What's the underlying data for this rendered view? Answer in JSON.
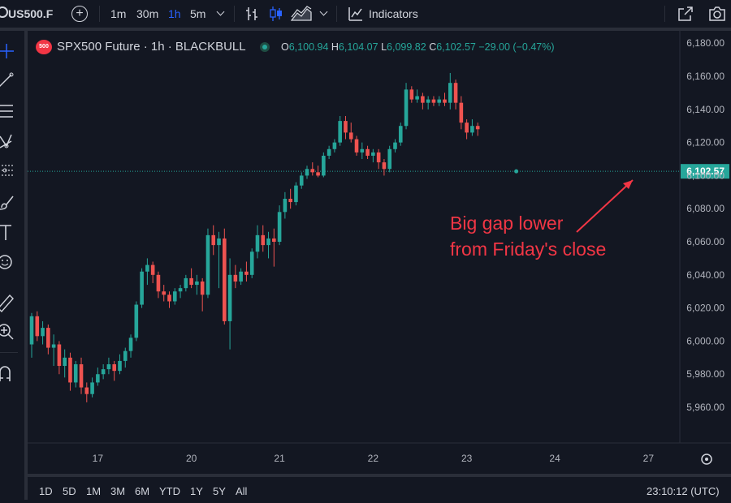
{
  "toolbar": {
    "symbol": "US500.F",
    "intervals": [
      "1m",
      "30m",
      "1h",
      "5m"
    ],
    "active_interval": "1h",
    "indicators_label": "Indicators"
  },
  "legend": {
    "badge": "500",
    "title": "SPX500 Future · 1h · BLACKBULL",
    "o_key": "O",
    "o_val": "6,100.94",
    "h_key": "H",
    "h_val": "6,104.07",
    "l_key": "L",
    "l_val": "6,099.82",
    "c_key": "C",
    "c_val": "6,102.57",
    "change": "−29.00 (−0.47%)"
  },
  "annotation": {
    "line1": "Big gap lower",
    "line2": "from Friday's close"
  },
  "bottom": {
    "ranges": [
      "1D",
      "5D",
      "1M",
      "3M",
      "6M",
      "YTD",
      "1Y",
      "5Y",
      "All"
    ],
    "clock": "23:10:12 (UTC)"
  },
  "colors": {
    "up": "#26a69a",
    "down": "#ef5350",
    "annotation": "#f23645",
    "accent": "#2962ff"
  },
  "icons": {
    "left_toolbar": [
      "crosshair-icon",
      "trend-line-icon",
      "horizontal-lines-icon",
      "pattern-icon",
      "fib-icon",
      "brush-icon",
      "text-icon",
      "emoji-icon",
      "ruler-icon",
      "zoom-in-icon",
      "magnet-icon"
    ]
  },
  "chart_data": {
    "type": "candlestick",
    "title": "SPX500 Future · 1h · BLACKBULL",
    "ylim": [
      5950,
      6185
    ],
    "y_ticks": [
      5960,
      5980,
      6000,
      6020,
      6040,
      6060,
      6080,
      6100,
      6120,
      6140,
      6160,
      6180
    ],
    "y_tick_labels": [
      "5,960.00",
      "5,980.00",
      "6,000.00",
      "6,020.00",
      "6,040.00",
      "6,060.00",
      "6,080.00",
      "6,100.00",
      "6,120.00",
      "6,140.00",
      "6,160.00",
      "6,180.00"
    ],
    "x_ticks": [
      {
        "label": "17",
        "bar": 12
      },
      {
        "label": "20",
        "bar": 29
      },
      {
        "label": "21",
        "bar": 45
      },
      {
        "label": "22",
        "bar": 62
      },
      {
        "label": "23",
        "bar": 79
      },
      {
        "label": "24",
        "bar": 95
      },
      {
        "label": "27",
        "bar": 112
      }
    ],
    "last_price": 6102.57,
    "last_price_label": "6,102.57",
    "grid": false,
    "candles": [
      [
        5998,
        6017,
        5990,
        6015
      ],
      [
        6015,
        6018,
        6000,
        6003
      ],
      [
        6003,
        6012,
        5998,
        6008
      ],
      [
        6008,
        6010,
        5992,
        5996
      ],
      [
        5996,
        6004,
        5985,
        5998
      ],
      [
        5998,
        6000,
        5980,
        5985
      ],
      [
        5985,
        5995,
        5978,
        5990
      ],
      [
        5990,
        5993,
        5970,
        5975
      ],
      [
        5975,
        5988,
        5972,
        5986
      ],
      [
        5986,
        5990,
        5968,
        5972
      ],
      [
        5972,
        5975,
        5963,
        5968
      ],
      [
        5968,
        5978,
        5966,
        5975
      ],
      [
        5975,
        5984,
        5973,
        5980
      ],
      [
        5980,
        5986,
        5977,
        5983
      ],
      [
        5983,
        5990,
        5980,
        5986
      ],
      [
        5986,
        5988,
        5976,
        5982
      ],
      [
        5982,
        5992,
        5980,
        5988
      ],
      [
        5988,
        5996,
        5984,
        5994
      ],
      [
        5994,
        6004,
        5990,
        6002
      ],
      [
        6002,
        6024,
        6000,
        6022
      ],
      [
        6022,
        6044,
        6020,
        6042
      ],
      [
        6042,
        6050,
        6034,
        6046
      ],
      [
        6046,
        6048,
        6035,
        6040
      ],
      [
        6040,
        6042,
        6026,
        6030
      ],
      [
        6030,
        6034,
        6024,
        6028
      ],
      [
        6028,
        6030,
        6020,
        6024
      ],
      [
        6024,
        6032,
        6022,
        6030
      ],
      [
        6030,
        6034,
        6026,
        6032
      ],
      [
        6032,
        6040,
        6030,
        6038
      ],
      [
        6038,
        6044,
        6032,
        6034
      ],
      [
        6034,
        6040,
        6028,
        6036
      ],
      [
        6036,
        6038,
        6018,
        6028
      ],
      [
        6028,
        6068,
        6026,
        6064
      ],
      [
        6064,
        6070,
        6052,
        6058
      ],
      [
        6058,
        6066,
        6032,
        6062
      ],
      [
        6062,
        6068,
        6010,
        6012
      ],
      [
        6012,
        6050,
        5995,
        6040
      ],
      [
        6040,
        6046,
        6032,
        6036
      ],
      [
        6036,
        6044,
        6034,
        6042
      ],
      [
        6042,
        6048,
        6036,
        6040
      ],
      [
        6040,
        6056,
        6038,
        6054
      ],
      [
        6054,
        6070,
        6050,
        6064
      ],
      [
        6064,
        6070,
        6054,
        6058
      ],
      [
        6058,
        6066,
        6050,
        6062
      ],
      [
        6062,
        6068,
        6045,
        6060
      ],
      [
        6060,
        6082,
        6058,
        6078
      ],
      [
        6078,
        6090,
        6074,
        6086
      ],
      [
        6086,
        6092,
        6080,
        6084
      ],
      [
        6084,
        6096,
        6082,
        6094
      ],
      [
        6094,
        6102,
        6092,
        6100
      ],
      [
        6100,
        6106,
        6098,
        6104
      ],
      [
        6104,
        6108,
        6100,
        6102
      ],
      [
        6102,
        6106,
        6099,
        6100
      ],
      [
        6100,
        6114,
        6099,
        6112
      ],
      [
        6112,
        6118,
        6110,
        6116
      ],
      [
        6116,
        6122,
        6114,
        6120
      ],
      [
        6120,
        6136,
        6118,
        6133
      ],
      [
        6133,
        6136,
        6122,
        6126
      ],
      [
        6126,
        6132,
        6120,
        6122
      ],
      [
        6122,
        6124,
        6112,
        6114
      ],
      [
        6114,
        6120,
        6110,
        6116
      ],
      [
        6116,
        6118,
        6110,
        6112
      ],
      [
        6112,
        6116,
        6108,
        6114
      ],
      [
        6114,
        6116,
        6104,
        6108
      ],
      [
        6108,
        6110,
        6100,
        6104
      ],
      [
        6104,
        6118,
        6102,
        6116
      ],
      [
        6116,
        6122,
        6114,
        6120
      ],
      [
        6120,
        6132,
        6118,
        6130
      ],
      [
        6130,
        6156,
        6128,
        6152
      ],
      [
        6152,
        6154,
        6144,
        6146
      ],
      [
        6146,
        6152,
        6144,
        6148
      ],
      [
        6148,
        6150,
        6140,
        6144
      ],
      [
        6144,
        6148,
        6140,
        6146
      ],
      [
        6146,
        6148,
        6142,
        6144
      ],
      [
        6144,
        6148,
        6142,
        6146
      ],
      [
        6146,
        6150,
        6142,
        6144
      ],
      [
        6144,
        6162,
        6140,
        6156
      ],
      [
        6156,
        6158,
        6140,
        6144
      ],
      [
        6144,
        6148,
        6128,
        6132
      ],
      [
        6132,
        6134,
        6122,
        6126
      ],
      [
        6126,
        6134,
        6124,
        6130
      ],
      [
        6130,
        6132,
        6124,
        6128
      ]
    ]
  }
}
